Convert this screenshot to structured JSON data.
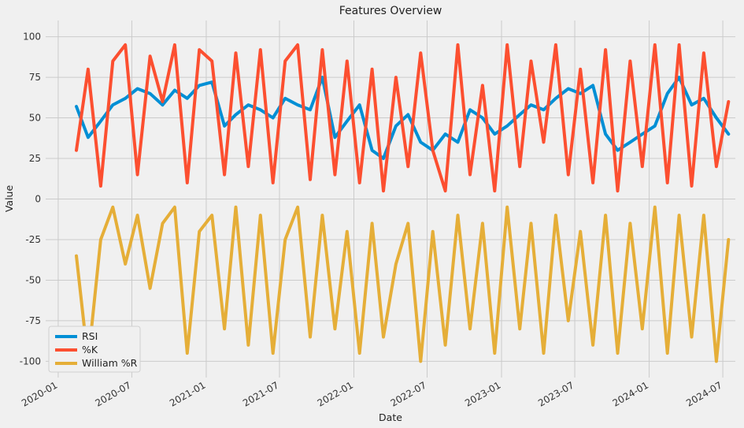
{
  "chart_data": {
    "type": "line",
    "title": "Features Overview",
    "xlabel": "Date",
    "ylabel": "Value",
    "x_range": [
      "2019-12-01",
      "2024-08-01"
    ],
    "ylim": [
      -110,
      110
    ],
    "x_ticks": [
      "2020-01",
      "2020-07",
      "2021-01",
      "2021-07",
      "2022-01",
      "2022-07",
      "2023-01",
      "2023-07",
      "2024-01",
      "2024-07"
    ],
    "y_ticks": [
      100,
      75,
      50,
      25,
      0,
      -25,
      -50,
      -75,
      -100
    ],
    "grid": true,
    "legend_position": "bottom-left",
    "x": [
      "2020-02-15",
      "2020-03-15",
      "2020-04-15",
      "2020-05-15",
      "2020-06-15",
      "2020-07-15",
      "2020-08-15",
      "2020-09-15",
      "2020-10-15",
      "2020-11-15",
      "2020-12-15",
      "2021-01-15",
      "2021-02-15",
      "2021-03-15",
      "2021-04-15",
      "2021-05-15",
      "2021-06-15",
      "2021-07-15",
      "2021-08-15",
      "2021-09-15",
      "2021-10-15",
      "2021-11-15",
      "2021-12-15",
      "2022-01-15",
      "2022-02-15",
      "2022-03-15",
      "2022-04-15",
      "2022-05-15",
      "2022-06-15",
      "2022-07-15",
      "2022-08-15",
      "2022-09-15",
      "2022-10-15",
      "2022-11-15",
      "2022-12-15",
      "2023-01-15",
      "2023-02-15",
      "2023-03-15",
      "2023-04-15",
      "2023-05-15",
      "2023-06-15",
      "2023-07-15",
      "2023-08-15",
      "2023-09-15",
      "2023-10-15",
      "2023-11-15",
      "2023-12-15",
      "2024-01-15",
      "2024-02-15",
      "2024-03-15",
      "2024-04-15",
      "2024-05-15",
      "2024-06-15",
      "2024-07-15"
    ],
    "series": [
      {
        "name": "RSI",
        "color": "#008fd5",
        "values": [
          57,
          38,
          48,
          58,
          62,
          68,
          65,
          58,
          67,
          62,
          70,
          72,
          45,
          52,
          58,
          55,
          50,
          62,
          58,
          55,
          75,
          38,
          48,
          58,
          30,
          25,
          45,
          52,
          35,
          30,
          40,
          35,
          55,
          50,
          40,
          45,
          52,
          58,
          55,
          62,
          68,
          65,
          70,
          40,
          30,
          35,
          40,
          45,
          65,
          75,
          58,
          62,
          50,
          40
        ]
      },
      {
        "name": "%K",
        "color": "#fc4f30",
        "values": [
          30,
          80,
          8,
          85,
          95,
          15,
          88,
          60,
          95,
          10,
          92,
          85,
          15,
          90,
          20,
          92,
          10,
          85,
          95,
          12,
          92,
          15,
          85,
          10,
          80,
          5,
          75,
          20,
          90,
          30,
          5,
          95,
          15,
          70,
          5,
          95,
          20,
          85,
          35,
          95,
          15,
          80,
          10,
          92,
          5,
          85,
          20,
          95,
          10,
          95,
          8,
          90,
          20,
          60
        ]
      },
      {
        "name": "William %R",
        "color": "#e5ae38",
        "values": [
          -35,
          -100,
          -25,
          -5,
          -40,
          -10,
          -55,
          -15,
          -5,
          -95,
          -20,
          -10,
          -80,
          -5,
          -90,
          -10,
          -95,
          -25,
          -5,
          -85,
          -10,
          -80,
          -20,
          -95,
          -15,
          -85,
          -40,
          -15,
          -100,
          -20,
          -90,
          -10,
          -80,
          -15,
          -95,
          -5,
          -80,
          -15,
          -95,
          -10,
          -75,
          -20,
          -90,
          -10,
          -95,
          -15,
          -80,
          -5,
          -95,
          -10,
          -85,
          -10,
          -100,
          -25
        ]
      }
    ]
  }
}
